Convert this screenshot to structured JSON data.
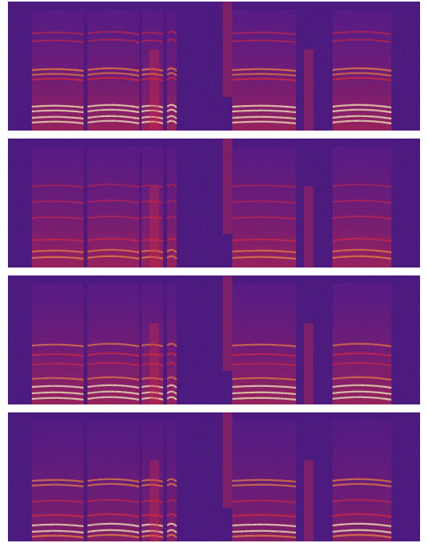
{
  "figure": {
    "colormap": [
      "#1b0736",
      "#3d1670",
      "#6a1a8a",
      "#c21f4e",
      "#ff2a1a",
      "#ff8a2a",
      "#ffe9a8"
    ],
    "panels": [
      {
        "id": "spectrogram-1",
        "variant": "reference"
      },
      {
        "id": "spectrogram-2",
        "variant": "degraded-low"
      },
      {
        "id": "spectrogram-3",
        "variant": "mid-harmonics"
      },
      {
        "id": "spectrogram-4",
        "variant": "banded"
      }
    ]
  }
}
